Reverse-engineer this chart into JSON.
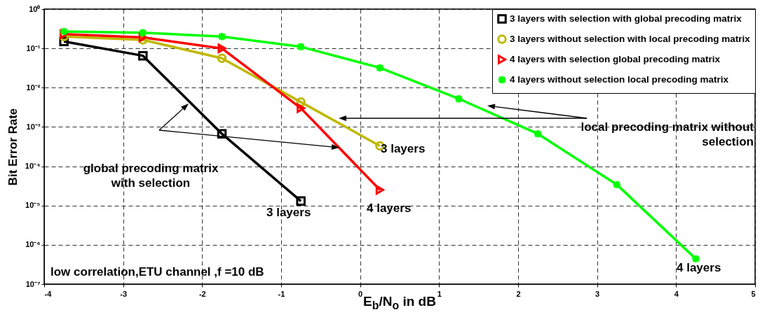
{
  "chart_data": {
    "type": "line",
    "xlabel": "E$_{b}$/N$_{o}$ in dB",
    "ylabel": "Bit Error Rate",
    "log": "y",
    "grid": true,
    "legend": "top right",
    "line_style": "solid",
    "x": [
      -3.75,
      -2.75,
      -1.75,
      -0.75,
      0.25,
      1.25,
      2.25,
      3.25,
      4.25
    ],
    "xlim": [
      -4,
      5
    ],
    "xticks": [
      -4,
      -3,
      -2,
      -1,
      0,
      1,
      2,
      3,
      4,
      5
    ],
    "ylim": [
      1e-07,
      1
    ],
    "yticks": [
      {
        "value": 1e-07,
        "label": "10⁻⁷"
      },
      {
        "value": 1e-06,
        "label": "10⁻⁶"
      },
      {
        "value": 1e-05,
        "label": "10⁻⁵"
      },
      {
        "value": 0.0001,
        "label": "10⁻⁴"
      },
      {
        "value": 0.001,
        "label": "10⁻³"
      },
      {
        "value": 0.01,
        "label": "10⁻²"
      },
      {
        "value": 0.1,
        "label": "10⁻¹"
      },
      {
        "value": 1,
        "label": "10⁰"
      }
    ],
    "series": [
      {
        "name": "3 layers with selection with global precoding matrix",
        "color": "#000000",
        "marker": "square",
        "values": [
          0.15,
          0.065,
          0.00067,
          1.3e-05,
          null,
          null,
          null,
          null,
          null
        ]
      },
      {
        "name": "3 layers without selection with local precoding matrix",
        "color": "#bfb800",
        "marker": "circle",
        "values": [
          0.2,
          0.165,
          0.056,
          0.0043,
          0.00033,
          null,
          null,
          null,
          null
        ]
      },
      {
        "name": "4 layers with selection global precoding matrix",
        "color": "#ff0000",
        "marker": "triangle",
        "values": [
          0.23,
          0.19,
          0.1,
          0.003,
          2.5e-05,
          null,
          null,
          null,
          null
        ]
      },
      {
        "name": "4 layers without selection local precoding matrix",
        "color": "#00ff00",
        "marker": "cross",
        "values": [
          0.27,
          0.25,
          0.2,
          0.11,
          0.032,
          0.0052,
          0.00067,
          3.4e-05,
          4.4e-07
        ]
      }
    ],
    "annotations": [
      "global precoding matrix with selection",
      "local precoding matrix without selection",
      "3 layers",
      "3 layers",
      "4 layers",
      "4 layers",
      "low correlation,ETU channel ,f =10 dB"
    ]
  }
}
